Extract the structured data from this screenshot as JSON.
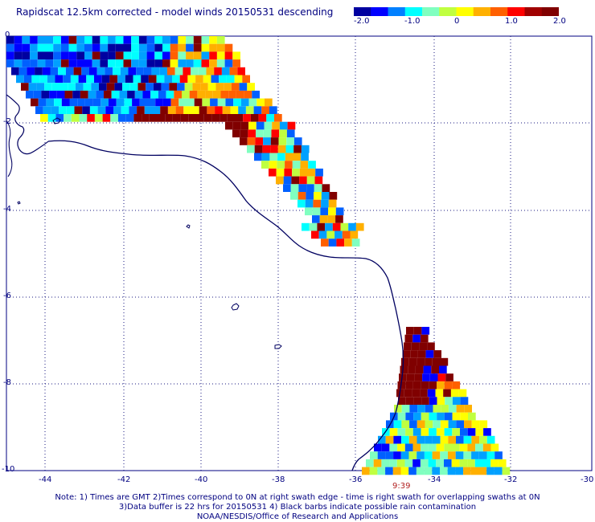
{
  "title": "Rapidscat 12.5km corrected - model winds 20150531 descending",
  "colorbar": {
    "labels": [
      "-2.0",
      "-1.0",
      "0",
      "1.0",
      "2.0"
    ],
    "colors": [
      "#0000a0",
      "#0000ff",
      "#0080ff",
      "#00ffff",
      "#80ffc0",
      "#c0ff40",
      "#ffff00",
      "#ffb000",
      "#ff6000",
      "#ff0000",
      "#a00000",
      "#800000"
    ]
  },
  "axes": {
    "x_ticks": [
      "-44",
      "-42",
      "-40",
      "-38",
      "-36",
      "-34",
      "-32",
      "-30"
    ],
    "y_ticks": [
      "0",
      "-2",
      "-4",
      "-6",
      "-8",
      "-10"
    ]
  },
  "time_label": "9:39",
  "notes": [
    "Note: 1) Times are GMT 2)Times correspond to 0N at right swath edge - time is right swath for overlapping swaths at 0N",
    "3)Data buffer is 22 hrs for 20150531 4) Black barbs indicate possible rain contamination",
    "NOAA/NESDIS/Office of Research and Applications"
  ],
  "palette": {
    "coast": "#000060",
    "grid": "#1a1a80"
  }
}
